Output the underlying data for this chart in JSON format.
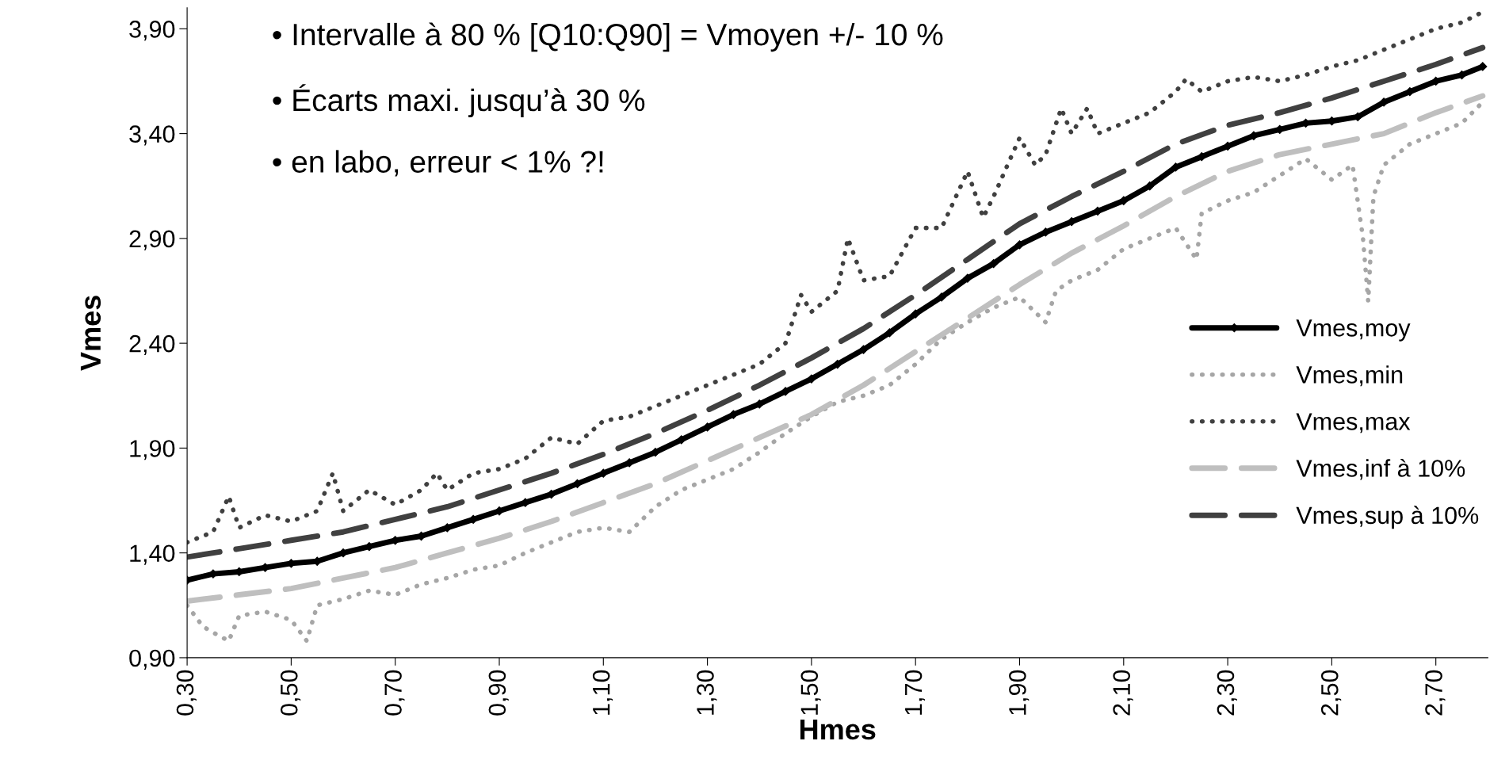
{
  "chart_data": {
    "type": "line",
    "xlabel": "Hmes",
    "ylabel": "Vmes",
    "annotations": [
      "• Intervalle à 80 % [Q10:Q90] = Vmoyen +/- 10 %",
      "• Écarts maxi. jusqu’à 30 %",
      "• en labo, erreur < 1% ?!"
    ],
    "xlim": [
      0.3,
      2.8
    ],
    "ylim": [
      0.9,
      4.0
    ],
    "xticks": [
      {
        "value": 0.3,
        "label": "0,30"
      },
      {
        "value": 0.5,
        "label": "0,50"
      },
      {
        "value": 0.7,
        "label": "0,70"
      },
      {
        "value": 0.9,
        "label": "0,90"
      },
      {
        "value": 1.1,
        "label": "1,10"
      },
      {
        "value": 1.3,
        "label": "1,30"
      },
      {
        "value": 1.5,
        "label": "1,50"
      },
      {
        "value": 1.7,
        "label": "1,70"
      },
      {
        "value": 1.9,
        "label": "1,90"
      },
      {
        "value": 2.1,
        "label": "2,10"
      },
      {
        "value": 2.3,
        "label": "2,30"
      },
      {
        "value": 2.5,
        "label": "2,50"
      },
      {
        "value": 2.7,
        "label": "2,70"
      }
    ],
    "yticks": [
      {
        "value": 0.9,
        "label": "0,90"
      },
      {
        "value": 1.4,
        "label": "1,40"
      },
      {
        "value": 1.9,
        "label": "1,90"
      },
      {
        "value": 2.4,
        "label": "2,40"
      },
      {
        "value": 2.9,
        "label": "2,90"
      },
      {
        "value": 3.4,
        "label": "3,40"
      },
      {
        "value": 3.9,
        "label": "3,90"
      }
    ],
    "grid": false,
    "legend": "right",
    "series": [
      {
        "name": "Vmes,moy",
        "color": "#000000",
        "line_style": "solid",
        "marker": "diamond",
        "x": [
          0.3,
          0.35,
          0.4,
          0.45,
          0.5,
          0.55,
          0.6,
          0.65,
          0.7,
          0.75,
          0.8,
          0.85,
          0.9,
          0.95,
          1.0,
          1.05,
          1.1,
          1.15,
          1.2,
          1.25,
          1.3,
          1.35,
          1.4,
          1.45,
          1.5,
          1.55,
          1.6,
          1.65,
          1.7,
          1.75,
          1.8,
          1.85,
          1.9,
          1.95,
          2.0,
          2.05,
          2.1,
          2.15,
          2.2,
          2.25,
          2.3,
          2.35,
          2.4,
          2.45,
          2.5,
          2.55,
          2.6,
          2.65,
          2.7,
          2.75,
          2.79
        ],
        "values": [
          1.27,
          1.3,
          1.31,
          1.33,
          1.35,
          1.36,
          1.4,
          1.43,
          1.46,
          1.48,
          1.52,
          1.56,
          1.6,
          1.64,
          1.68,
          1.73,
          1.78,
          1.83,
          1.88,
          1.94,
          2.0,
          2.06,
          2.11,
          2.17,
          2.23,
          2.3,
          2.37,
          2.45,
          2.54,
          2.62,
          2.71,
          2.78,
          2.87,
          2.93,
          2.98,
          3.03,
          3.08,
          3.15,
          3.24,
          3.29,
          3.34,
          3.39,
          3.42,
          3.45,
          3.46,
          3.48,
          3.55,
          3.6,
          3.65,
          3.68,
          3.72
        ]
      },
      {
        "name": "Vmes,min",
        "color": "#a6a6a6",
        "line_style": "dotted",
        "marker": "none",
        "x": [
          0.3,
          0.33,
          0.35,
          0.38,
          0.4,
          0.45,
          0.5,
          0.53,
          0.55,
          0.6,
          0.65,
          0.7,
          0.75,
          0.8,
          0.85,
          0.9,
          0.95,
          1.0,
          1.05,
          1.1,
          1.15,
          1.2,
          1.25,
          1.3,
          1.35,
          1.4,
          1.45,
          1.5,
          1.55,
          1.6,
          1.65,
          1.7,
          1.75,
          1.8,
          1.85,
          1.9,
          1.95,
          1.97,
          2.0,
          2.05,
          2.1,
          2.15,
          2.2,
          2.24,
          2.25,
          2.3,
          2.35,
          2.4,
          2.45,
          2.5,
          2.54,
          2.56,
          2.57,
          2.58,
          2.6,
          2.65,
          2.7,
          2.75,
          2.79
        ],
        "values": [
          1.15,
          1.05,
          1.02,
          0.98,
          1.1,
          1.12,
          1.08,
          0.98,
          1.15,
          1.18,
          1.22,
          1.2,
          1.25,
          1.28,
          1.32,
          1.34,
          1.4,
          1.45,
          1.5,
          1.52,
          1.5,
          1.62,
          1.7,
          1.75,
          1.8,
          1.88,
          1.97,
          2.05,
          2.12,
          2.15,
          2.2,
          2.3,
          2.42,
          2.5,
          2.57,
          2.62,
          2.5,
          2.65,
          2.7,
          2.75,
          2.85,
          2.9,
          2.95,
          2.8,
          3.02,
          3.08,
          3.12,
          3.2,
          3.28,
          3.18,
          3.25,
          2.9,
          2.6,
          3.1,
          3.25,
          3.35,
          3.4,
          3.45,
          3.55
        ]
      },
      {
        "name": "Vmes,max",
        "color": "#404040",
        "line_style": "dotted",
        "marker": "none",
        "x": [
          0.3,
          0.35,
          0.38,
          0.4,
          0.45,
          0.5,
          0.55,
          0.58,
          0.6,
          0.65,
          0.7,
          0.75,
          0.78,
          0.8,
          0.85,
          0.9,
          0.95,
          1.0,
          1.05,
          1.1,
          1.15,
          1.2,
          1.25,
          1.3,
          1.35,
          1.4,
          1.45,
          1.48,
          1.5,
          1.55,
          1.57,
          1.6,
          1.65,
          1.7,
          1.75,
          1.8,
          1.83,
          1.85,
          1.9,
          1.93,
          1.95,
          1.98,
          2.0,
          2.03,
          2.05,
          2.1,
          2.15,
          2.2,
          2.22,
          2.25,
          2.3,
          2.35,
          2.4,
          2.45,
          2.5,
          2.55,
          2.6,
          2.65,
          2.7,
          2.75,
          2.79
        ],
        "values": [
          1.45,
          1.5,
          1.67,
          1.52,
          1.58,
          1.55,
          1.6,
          1.78,
          1.6,
          1.7,
          1.63,
          1.7,
          1.78,
          1.7,
          1.78,
          1.8,
          1.85,
          1.95,
          1.92,
          2.03,
          2.05,
          2.1,
          2.15,
          2.2,
          2.25,
          2.3,
          2.4,
          2.63,
          2.55,
          2.65,
          2.9,
          2.7,
          2.72,
          2.95,
          2.95,
          3.22,
          3.0,
          3.1,
          3.38,
          3.25,
          3.3,
          3.52,
          3.4,
          3.52,
          3.4,
          3.45,
          3.5,
          3.6,
          3.66,
          3.6,
          3.65,
          3.67,
          3.65,
          3.68,
          3.72,
          3.75,
          3.8,
          3.85,
          3.9,
          3.93,
          3.98
        ]
      },
      {
        "name": "Vmes,inf à 10%",
        "color": "#bfbfbf",
        "line_style": "dashed",
        "marker": "none",
        "x": [
          0.3,
          0.4,
          0.5,
          0.6,
          0.7,
          0.8,
          0.9,
          1.0,
          1.1,
          1.2,
          1.3,
          1.4,
          1.5,
          1.6,
          1.7,
          1.8,
          1.9,
          2.0,
          2.1,
          2.2,
          2.3,
          2.4,
          2.5,
          2.6,
          2.7,
          2.79
        ],
        "values": [
          1.17,
          1.2,
          1.23,
          1.28,
          1.33,
          1.4,
          1.47,
          1.55,
          1.64,
          1.73,
          1.84,
          1.95,
          2.06,
          2.2,
          2.36,
          2.52,
          2.68,
          2.83,
          2.96,
          3.1,
          3.22,
          3.3,
          3.35,
          3.4,
          3.5,
          3.58
        ]
      },
      {
        "name": "Vmes,sup à 10%",
        "color": "#404040",
        "line_style": "dashed",
        "marker": "none",
        "x": [
          0.3,
          0.4,
          0.5,
          0.6,
          0.7,
          0.8,
          0.9,
          1.0,
          1.1,
          1.2,
          1.3,
          1.4,
          1.5,
          1.6,
          1.7,
          1.8,
          1.9,
          2.0,
          2.1,
          2.2,
          2.3,
          2.4,
          2.5,
          2.6,
          2.7,
          2.79
        ],
        "values": [
          1.38,
          1.42,
          1.46,
          1.5,
          1.56,
          1.62,
          1.7,
          1.78,
          1.87,
          1.97,
          2.08,
          2.2,
          2.33,
          2.47,
          2.63,
          2.8,
          2.97,
          3.1,
          3.22,
          3.35,
          3.44,
          3.5,
          3.57,
          3.65,
          3.73,
          3.81
        ]
      }
    ]
  }
}
